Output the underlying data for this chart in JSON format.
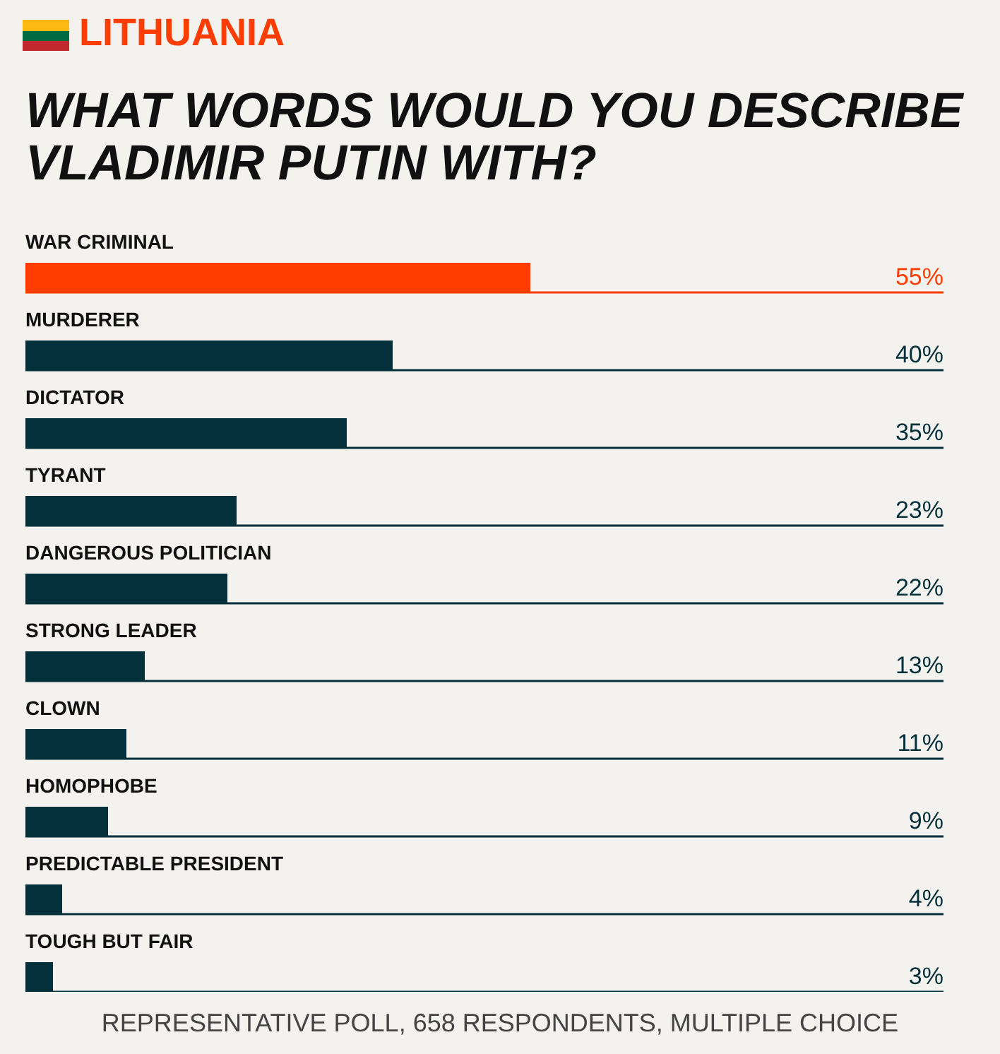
{
  "chart_data": {
    "type": "bar",
    "orientation": "horizontal",
    "title": "LITHUANIA",
    "subtitle": "WHAT WORDS WOULD YOU DESCRIBE VLADIMIR PUTIN WITH?",
    "categories": [
      "WAR CRIMINAL",
      "MURDERER",
      "DICTATOR",
      "TYRANT",
      "DANGEROUS POLITICIAN",
      "STRONG LEADER",
      "CLOWN",
      "HOMOPHOBE",
      "PREDICTABLE PRESIDENT",
      "TOUGH BUT FAIR"
    ],
    "values": [
      55,
      40,
      35,
      23,
      22,
      13,
      11,
      9,
      4,
      3
    ],
    "value_labels": [
      "55%",
      "40%",
      "35%",
      "23%",
      "22%",
      "13%",
      "11%",
      "9%",
      "4%",
      "3%"
    ],
    "colors": [
      "#ff3d00",
      "#04303b",
      "#04303b",
      "#04303b",
      "#04303b",
      "#04303b",
      "#04303b",
      "#04303b",
      "#04303b",
      "#04303b"
    ],
    "xlim": [
      0,
      100
    ],
    "ref_lines": [
      {
        "axis": "y",
        "value": "WAR CRIMINAL",
        "color": "#ff3d00"
      },
      {
        "axis": "y",
        "value": "MURDERER",
        "color": "#04303b"
      },
      {
        "axis": "y",
        "value": "DICTATOR",
        "color": "#04303b"
      },
      {
        "axis": "y",
        "value": "TYRANT",
        "color": "#04303b"
      },
      {
        "axis": "y",
        "value": "DANGEROUS POLITICIAN",
        "color": "#04303b"
      },
      {
        "axis": "y",
        "value": "STRONG LEADER",
        "color": "#04303b"
      },
      {
        "axis": "y",
        "value": "CLOWN",
        "color": "#04303b"
      },
      {
        "axis": "y",
        "value": "HOMOPHOBE",
        "color": "#04303b"
      },
      {
        "axis": "y",
        "value": "PREDICTABLE PRESIDENT",
        "color": "#04303b"
      },
      {
        "axis": "y",
        "value": "TOUGH BUT FAIR",
        "color": "#04303b"
      }
    ],
    "annotations": [
      "REPRESENTATIVE POLL, 658 RESPONDENTS, MULTIPLE CHOICE"
    ]
  }
}
